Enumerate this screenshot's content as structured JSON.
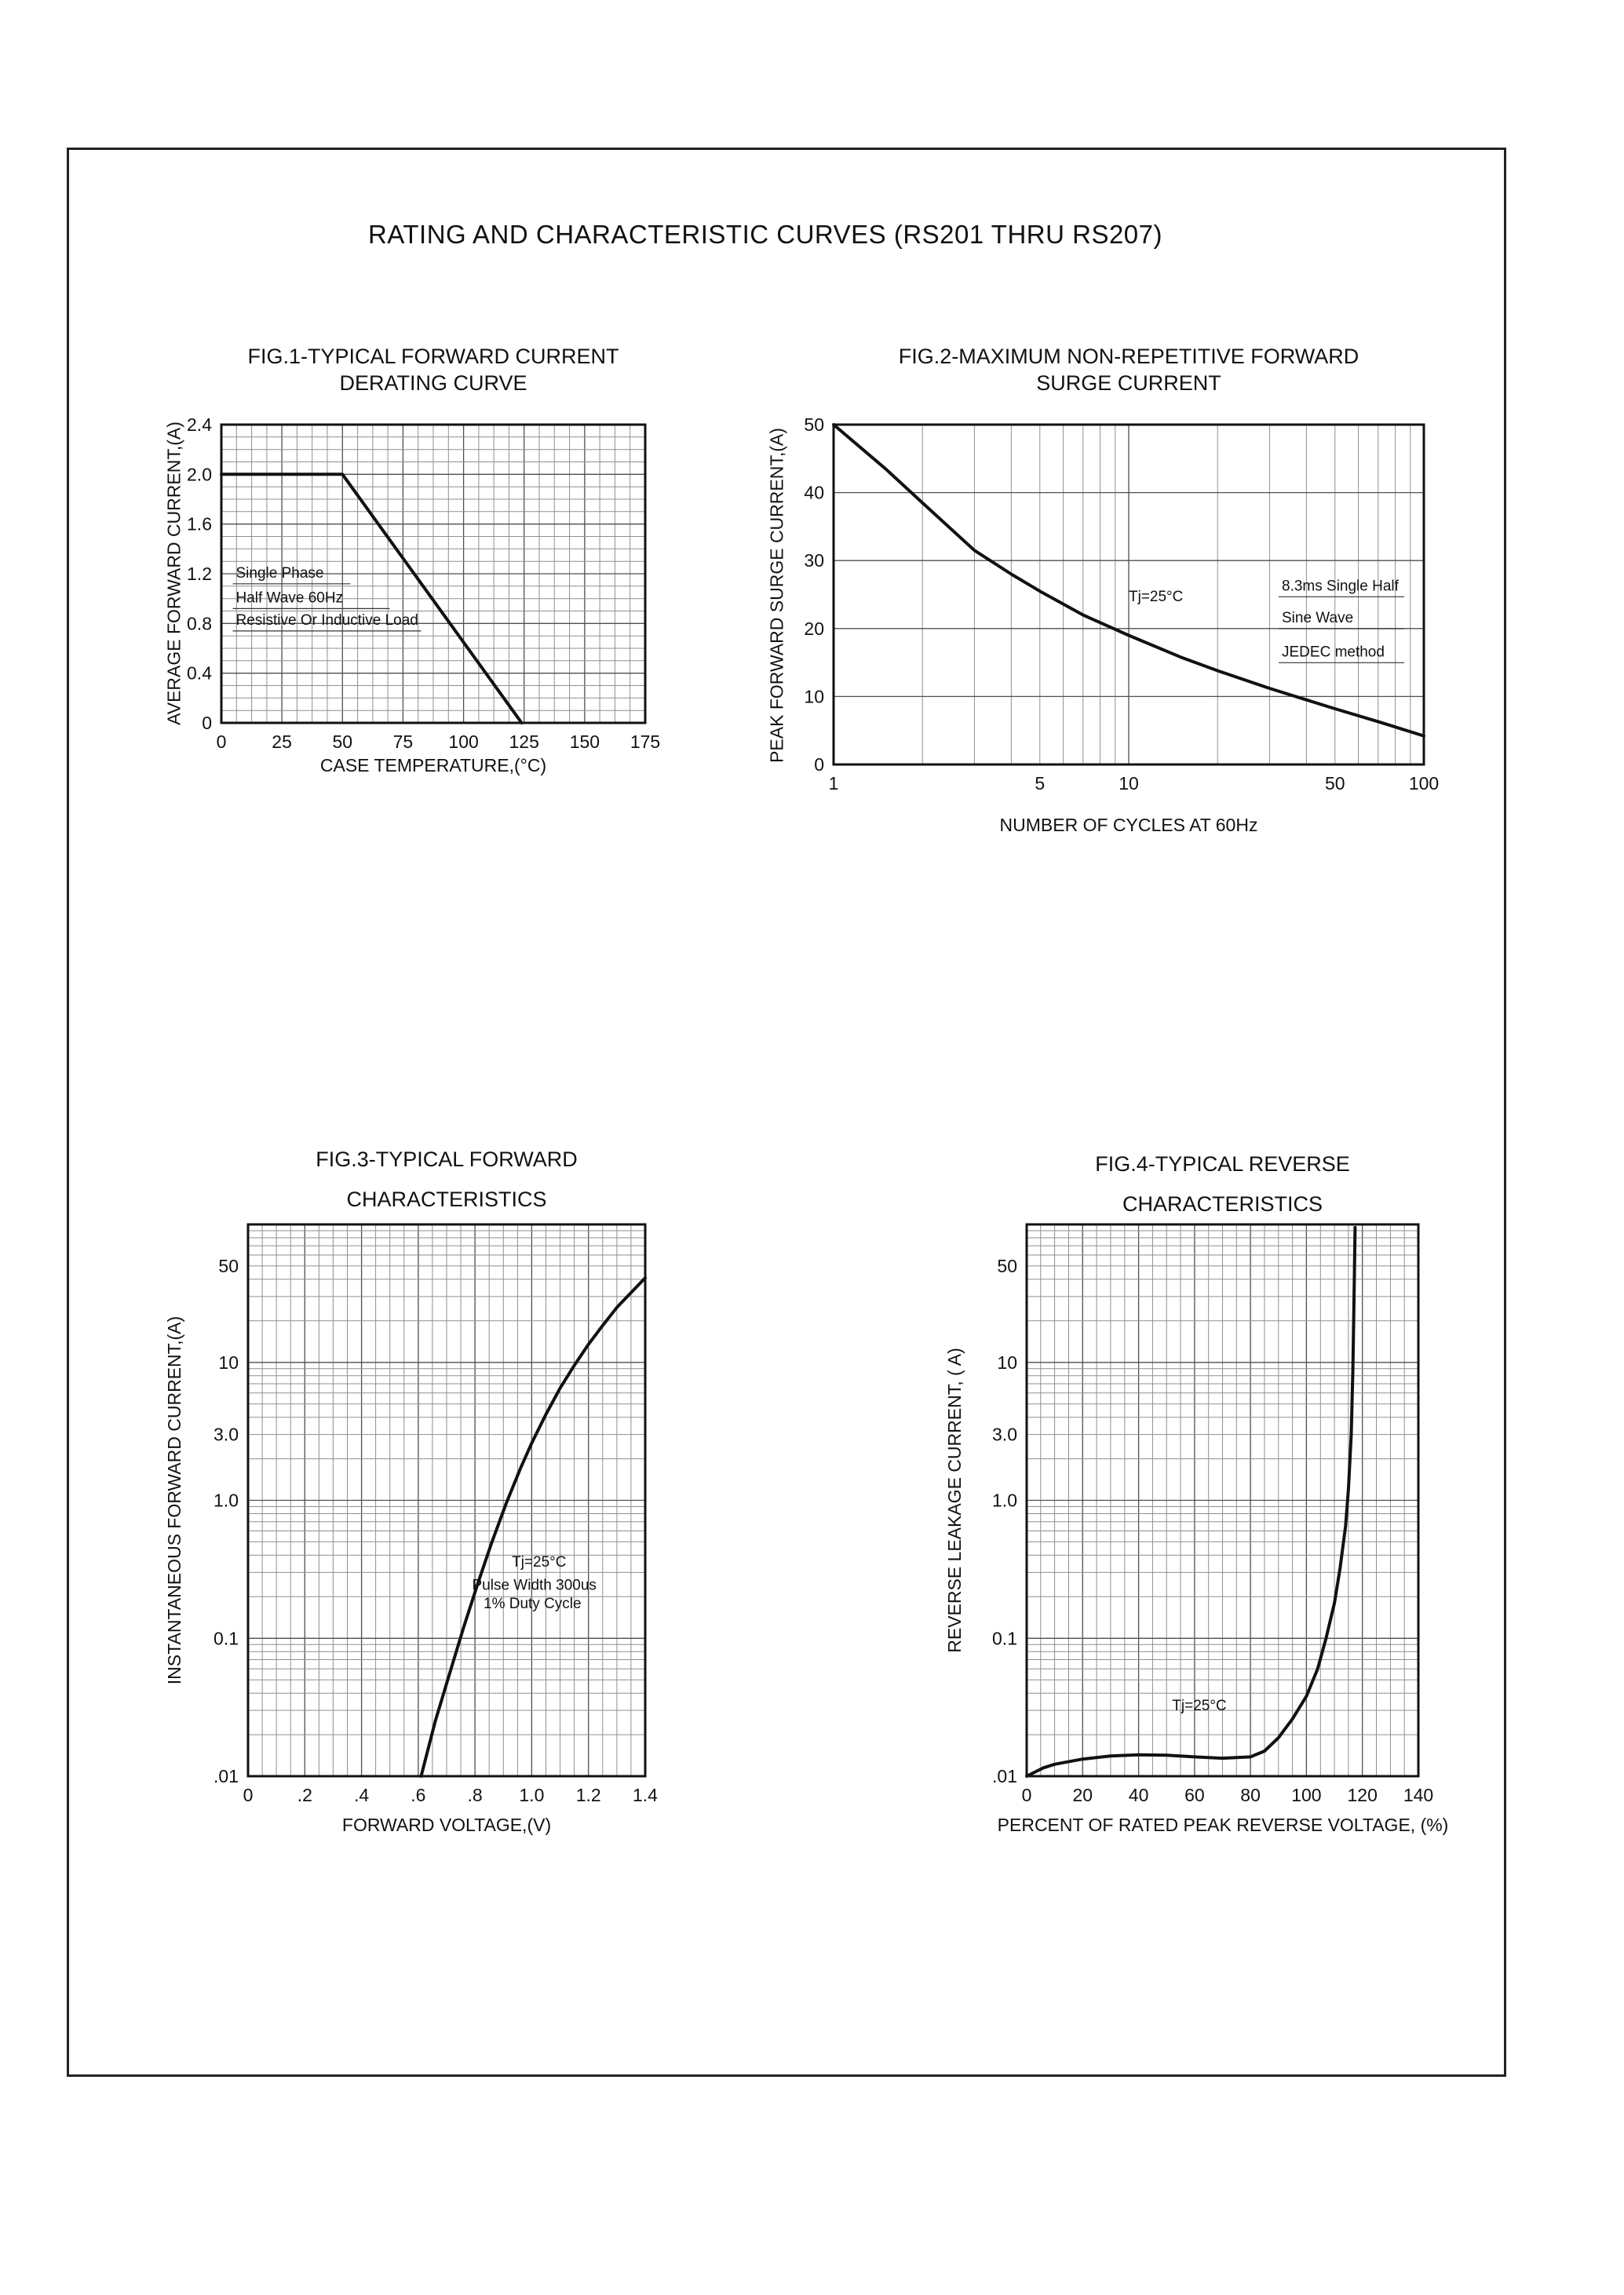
{
  "page": {
    "title": "RATING AND CHARACTERISTIC CURVES (RS201 THRU RS207)"
  },
  "colors": {
    "ink": "#111111",
    "grid": "#8f8f8f",
    "background": "#ffffff"
  },
  "chart_data": [
    {
      "name": "fig1",
      "type": "line",
      "title_lines": [
        "FIG.1-TYPICAL FORWARD CURRENT",
        "DERATING CURVE"
      ],
      "xlabel": "CASE TEMPERATURE,(°C)",
      "ylabel": "AVERAGE FORWARD CURRENT,(A)",
      "x_axis": {
        "scale": "linear",
        "min": 0,
        "max": 175,
        "major_step": 25,
        "minor_div": 4,
        "ticks": [
          [
            "0",
            0
          ],
          [
            "25",
            25
          ],
          [
            "50",
            50
          ],
          [
            "75",
            75
          ],
          [
            "100",
            100
          ],
          [
            "125",
            125
          ],
          [
            "150",
            150
          ],
          [
            "175",
            175
          ]
        ]
      },
      "y_axis": {
        "scale": "linear",
        "min": 0,
        "max": 2.4,
        "major_step": 0.4,
        "minor_div": 4,
        "ticks": [
          [
            "0",
            0
          ],
          [
            "0.4",
            0.4
          ],
          [
            "0.8",
            0.8
          ],
          [
            "1.2",
            1.2
          ],
          [
            "1.6",
            1.6
          ],
          [
            "2.0",
            2.0
          ],
          [
            "2.4",
            2.4
          ]
        ]
      },
      "series": [
        {
          "name": "derating-curve",
          "points": [
            [
              0,
              2.0
            ],
            [
              50,
              2.0
            ],
            [
              124,
              0
            ]
          ]
        }
      ],
      "annotations": [
        {
          "text": "Single Phase",
          "x": 6,
          "y": 1.17,
          "rule_len": 150
        },
        {
          "text": "Half Wave 60Hz",
          "x": 6,
          "y": 0.97,
          "rule_len": 200
        },
        {
          "text": "Resistive Or Inductive Load",
          "x": 6,
          "y": 0.79,
          "rule_len": 240
        }
      ]
    },
    {
      "name": "fig2",
      "type": "line",
      "title_lines": [
        "FIG.2-MAXIMUM NON-REPETITIVE FORWARD",
        "SURGE CURRENT"
      ],
      "xlabel": "NUMBER OF CYCLES AT 60Hz",
      "ylabel": "PEAK FORWARD SURGE CURRENT,(A)",
      "x_axis": {
        "scale": "log",
        "min": 1,
        "max": 100,
        "ticks": [
          [
            "1",
            1
          ],
          [
            "5",
            5
          ],
          [
            "10",
            10
          ],
          [
            "50",
            50
          ],
          [
            "100",
            100
          ]
        ]
      },
      "y_axis": {
        "scale": "linear",
        "min": 0,
        "max": 50,
        "major_step": 10,
        "minor_div": 1,
        "ticks": [
          [
            "0",
            0
          ],
          [
            "10",
            10
          ],
          [
            "20",
            20
          ],
          [
            "30",
            30
          ],
          [
            "40",
            40
          ],
          [
            "50",
            50
          ]
        ]
      },
      "series": [
        {
          "name": "surge-curve",
          "points": [
            [
              1,
              50
            ],
            [
              1.5,
              43.5
            ],
            [
              2,
              38.5
            ],
            [
              3,
              31.5
            ],
            [
              4,
              28
            ],
            [
              5,
              25.5
            ],
            [
              7,
              22
            ],
            [
              10,
              19
            ],
            [
              15,
              15.8
            ],
            [
              20,
              13.8
            ],
            [
              30,
              11.2
            ],
            [
              50,
              8.2
            ],
            [
              70,
              6.3
            ],
            [
              100,
              4.2
            ]
          ]
        }
      ],
      "annotations": [
        {
          "text": "Tj=25°C",
          "x": 10,
          "y": 24,
          "rule_len": 0
        },
        {
          "text": "8.3ms Single Half",
          "x": 33,
          "y": 25.6,
          "rule_len": 160
        },
        {
          "text": "Sine Wave",
          "x": 33,
          "y": 20.9,
          "rule_len": 160
        },
        {
          "text": "JEDEC method",
          "x": 33,
          "y": 15.9,
          "rule_len": 160
        }
      ]
    },
    {
      "name": "fig3",
      "type": "line",
      "title_lines": [
        "FIG.3-TYPICAL FORWARD",
        "CHARACTERISTICS"
      ],
      "xlabel": "FORWARD VOLTAGE,(V)",
      "ylabel": "INSTANTANEOUS FORWARD CURRENT,(A)",
      "x_axis": {
        "scale": "linear",
        "min": 0,
        "max": 1.4,
        "major_step": 0.2,
        "minor_div": 4,
        "ticks": [
          [
            "0",
            0
          ],
          [
            ".2",
            0.2
          ],
          [
            ".4",
            0.4
          ],
          [
            ".6",
            0.6
          ],
          [
            ".8",
            0.8
          ],
          [
            "1.0",
            1.0
          ],
          [
            "1.2",
            1.2
          ],
          [
            "1.4",
            1.4
          ]
        ]
      },
      "y_axis": {
        "scale": "log",
        "min": 0.01,
        "max": 100,
        "ticks": [
          [
            "50",
            50
          ],
          [
            "10",
            10
          ],
          [
            "3.0",
            3
          ],
          [
            "1.0",
            1
          ],
          [
            "0.1",
            0.1
          ],
          [
            ".01",
            0.01
          ]
        ]
      },
      "series": [
        {
          "name": "forward-curve",
          "points": [
            [
              0.61,
              0.01
            ],
            [
              0.66,
              0.025
            ],
            [
              0.71,
              0.055
            ],
            [
              0.76,
              0.12
            ],
            [
              0.81,
              0.25
            ],
            [
              0.86,
              0.5
            ],
            [
              0.91,
              0.95
            ],
            [
              0.96,
              1.7
            ],
            [
              1.0,
              2.6
            ],
            [
              1.05,
              4.2
            ],
            [
              1.1,
              6.5
            ],
            [
              1.15,
              9.5
            ],
            [
              1.2,
              13.5
            ],
            [
              1.25,
              18.5
            ],
            [
              1.3,
              25
            ],
            [
              1.35,
              32
            ],
            [
              1.4,
              41
            ]
          ]
        }
      ],
      "annotations": [
        {
          "text": "Tj=25°C",
          "x": 0.93,
          "y": 0.33,
          "rule_len": 0
        },
        {
          "text": "Pulse Width 300us",
          "x": 0.79,
          "y": 0.225,
          "rule_len": 0
        },
        {
          "text": "1% Duty Cycle",
          "x": 0.83,
          "y": 0.165,
          "rule_len": 0
        }
      ]
    },
    {
      "name": "fig4",
      "type": "line",
      "title_lines": [
        "FIG.4-TYPICAL REVERSE",
        "CHARACTERISTICS"
      ],
      "xlabel": "PERCENT OF RATED PEAK REVERSE VOLTAGE, (%)",
      "ylabel": "REVERSE LEAKAGE CURRENT, ( A)",
      "x_axis": {
        "scale": "linear",
        "min": 0,
        "max": 140,
        "major_step": 20,
        "minor_div": 4,
        "ticks": [
          [
            "0",
            0
          ],
          [
            "20",
            20
          ],
          [
            "40",
            40
          ],
          [
            "60",
            60
          ],
          [
            "80",
            80
          ],
          [
            "100",
            100
          ],
          [
            "120",
            120
          ],
          [
            "140",
            140
          ]
        ]
      },
      "y_axis": {
        "scale": "log",
        "min": 0.01,
        "max": 100,
        "ticks": [
          [
            "50",
            50
          ],
          [
            "10",
            10
          ],
          [
            "3.0",
            3
          ],
          [
            "1.0",
            1
          ],
          [
            "0.1",
            0.1
          ],
          [
            ".01",
            0.01
          ]
        ]
      },
      "series": [
        {
          "name": "reverse-curve",
          "points": [
            [
              0,
              0.01
            ],
            [
              6,
              0.0115
            ],
            [
              10,
              0.0122
            ],
            [
              20,
              0.0133
            ],
            [
              30,
              0.014
            ],
            [
              40,
              0.0143
            ],
            [
              50,
              0.0142
            ],
            [
              60,
              0.0138
            ],
            [
              70,
              0.0135
            ],
            [
              80,
              0.0138
            ],
            [
              85,
              0.0152
            ],
            [
              90,
              0.019
            ],
            [
              95,
              0.026
            ],
            [
              100,
              0.038
            ],
            [
              104,
              0.06
            ],
            [
              107,
              0.1
            ],
            [
              110,
              0.18
            ],
            [
              112,
              0.32
            ],
            [
              114,
              0.65
            ],
            [
              115,
              1.2
            ],
            [
              116,
              3
            ],
            [
              116.6,
              9
            ],
            [
              117,
              28
            ],
            [
              117.4,
              95
            ]
          ]
        }
      ],
      "annotations": [
        {
          "text": "Tj=25°C",
          "x": 52,
          "y": 0.03,
          "rule_len": 0
        }
      ]
    }
  ]
}
